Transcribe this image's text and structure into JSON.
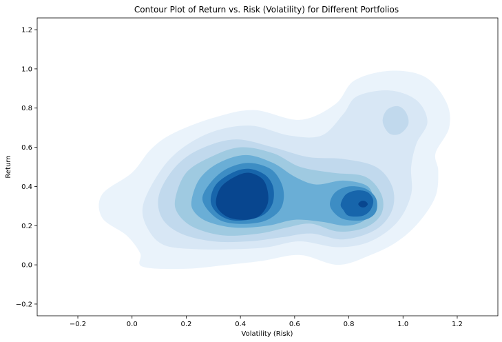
{
  "chart_data": {
    "type": "contour",
    "title": "Contour Plot of Return vs. Risk (Volatility) for Different Portfolios",
    "xlabel": "Volatility (Risk)",
    "ylabel": "Return",
    "xlim": [
      -0.35,
      1.35
    ],
    "ylim": [
      -0.26,
      1.26
    ],
    "x_ticks": [
      -0.2,
      0.0,
      0.2,
      0.4,
      0.6,
      0.8,
      1.0,
      1.2
    ],
    "x_tick_labels": [
      "−0.2",
      "0.0",
      "0.2",
      "0.4",
      "0.6",
      "0.8",
      "1.0",
      "1.2"
    ],
    "y_ticks": [
      -0.2,
      0.0,
      0.2,
      0.4,
      0.6,
      0.8,
      1.0,
      1.2
    ],
    "y_tick_labels": [
      "−0.2",
      "0.0",
      "0.2",
      "0.4",
      "0.6",
      "0.8",
      "1.0",
      "1.2"
    ],
    "grid": false,
    "colormap": "Blues",
    "fill": true,
    "density_peaks": [
      {
        "x": 0.42,
        "y": 0.34,
        "level": "highest"
      },
      {
        "x": 0.85,
        "y": 0.31,
        "level": "highest"
      },
      {
        "x": 0.97,
        "y": 0.73,
        "level": "low"
      }
    ]
  },
  "colors": {
    "levels": [
      "#eaf3fb",
      "#d8e7f5",
      "#c1d9ed",
      "#9fcae1",
      "#6aaed6",
      "#3d8dc4",
      "#1765ab",
      "#08468f"
    ]
  }
}
